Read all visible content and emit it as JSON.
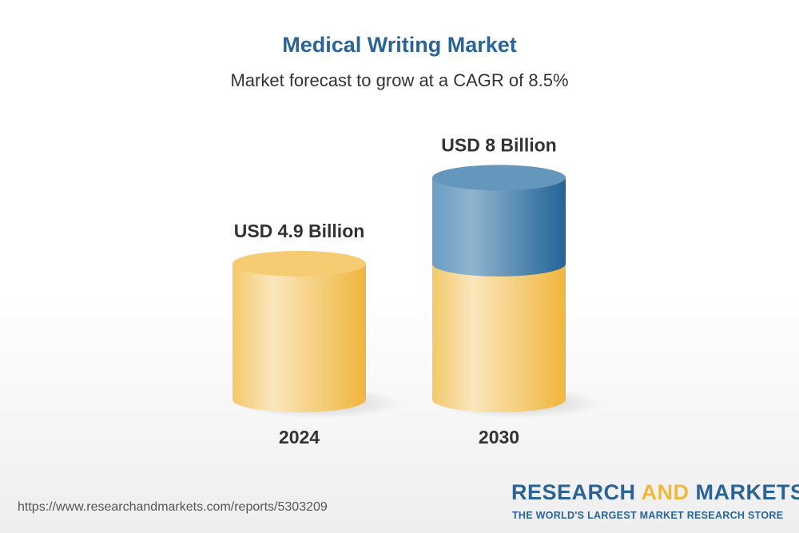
{
  "chart_data": {
    "type": "bar",
    "title": "Medical Writing Market",
    "subtitle": "Market forecast to grow at a CAGR of 8.5%",
    "categories": [
      "2024",
      "2030"
    ],
    "values": [
      4.9,
      8
    ],
    "data_labels": [
      "USD 4.9 Billion",
      "USD 8 Billion"
    ],
    "unit": "USD Billion",
    "style": "3d-cylinder",
    "colors": {
      "base": "#f0b93a",
      "growth": "#2a6496"
    }
  },
  "footer": {
    "url": "https://www.researchandmarkets.com/reports/5303209",
    "logo_research": "RESEARCH",
    "logo_and": "AND",
    "logo_markets": "MARKETS",
    "logo_tagline": "THE WORLD'S LARGEST MARKET RESEARCH STORE"
  }
}
